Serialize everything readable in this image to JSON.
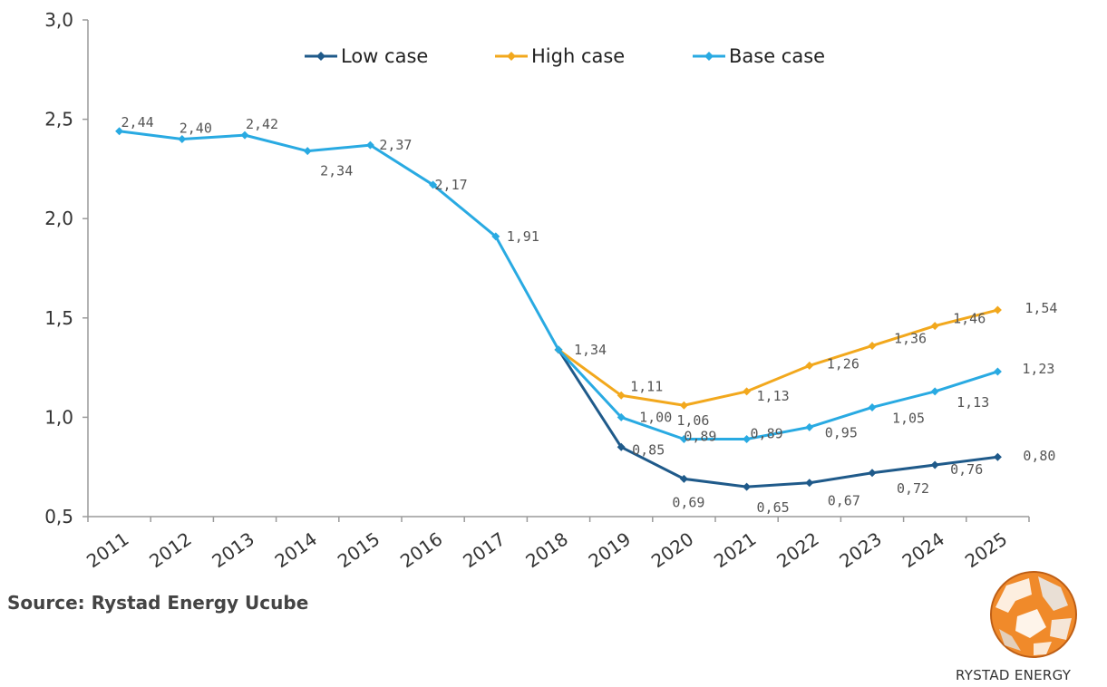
{
  "chart_data": {
    "type": "line",
    "title": "",
    "xlabel": "",
    "ylabel": "",
    "categories": [
      "2011",
      "2012",
      "2013",
      "2014",
      "2015",
      "2016",
      "2017",
      "2018",
      "2019",
      "2020",
      "2021",
      "2022",
      "2023",
      "2024",
      "2025"
    ],
    "ylim": [
      0.5,
      3.0
    ],
    "yticks": [
      0.5,
      1.0,
      1.5,
      2.0,
      2.5,
      3.0
    ],
    "ytick_labels": [
      "0,5",
      "1,0",
      "1,5",
      "2,0",
      "2,5",
      "3,0"
    ],
    "grid": false,
    "legend_position": "top",
    "series": [
      {
        "name": "Low case",
        "color": "#1f5a8a",
        "values": [
          null,
          null,
          null,
          null,
          null,
          null,
          null,
          1.34,
          0.85,
          0.69,
          0.65,
          0.67,
          0.72,
          0.76,
          0.8
        ],
        "labels": [
          null,
          null,
          null,
          null,
          null,
          null,
          null,
          null,
          "0,85",
          "0,69",
          "0,65",
          "0,67",
          "0,72",
          "0,76",
          "0,80"
        ]
      },
      {
        "name": "High case",
        "color": "#f2a81d",
        "values": [
          null,
          null,
          null,
          null,
          null,
          null,
          null,
          1.34,
          1.11,
          1.06,
          1.13,
          1.26,
          1.36,
          1.46,
          1.54
        ],
        "labels": [
          null,
          null,
          null,
          null,
          null,
          null,
          null,
          null,
          "1,11",
          "1,06",
          "1,13",
          "1,26",
          "1,36",
          "1,46",
          "1,54"
        ]
      },
      {
        "name": "Base case",
        "color": "#29aae2",
        "values": [
          2.44,
          2.4,
          2.42,
          2.34,
          2.37,
          2.17,
          1.91,
          1.34,
          1.0,
          0.89,
          0.89,
          0.95,
          1.05,
          1.13,
          1.23
        ],
        "labels": [
          "2,44",
          "2,40",
          "2,42",
          "2,34",
          "2,37",
          "2,17",
          "1,91",
          "1,34",
          "1,00",
          "0,89",
          "0,89",
          "0,95",
          "1,05",
          "1,13",
          "1,23"
        ]
      }
    ]
  },
  "source": "Source: Rystad Energy Ucube",
  "brand": "RYSTAD ENERGY",
  "logo_icon": "rystad-globe-logo"
}
